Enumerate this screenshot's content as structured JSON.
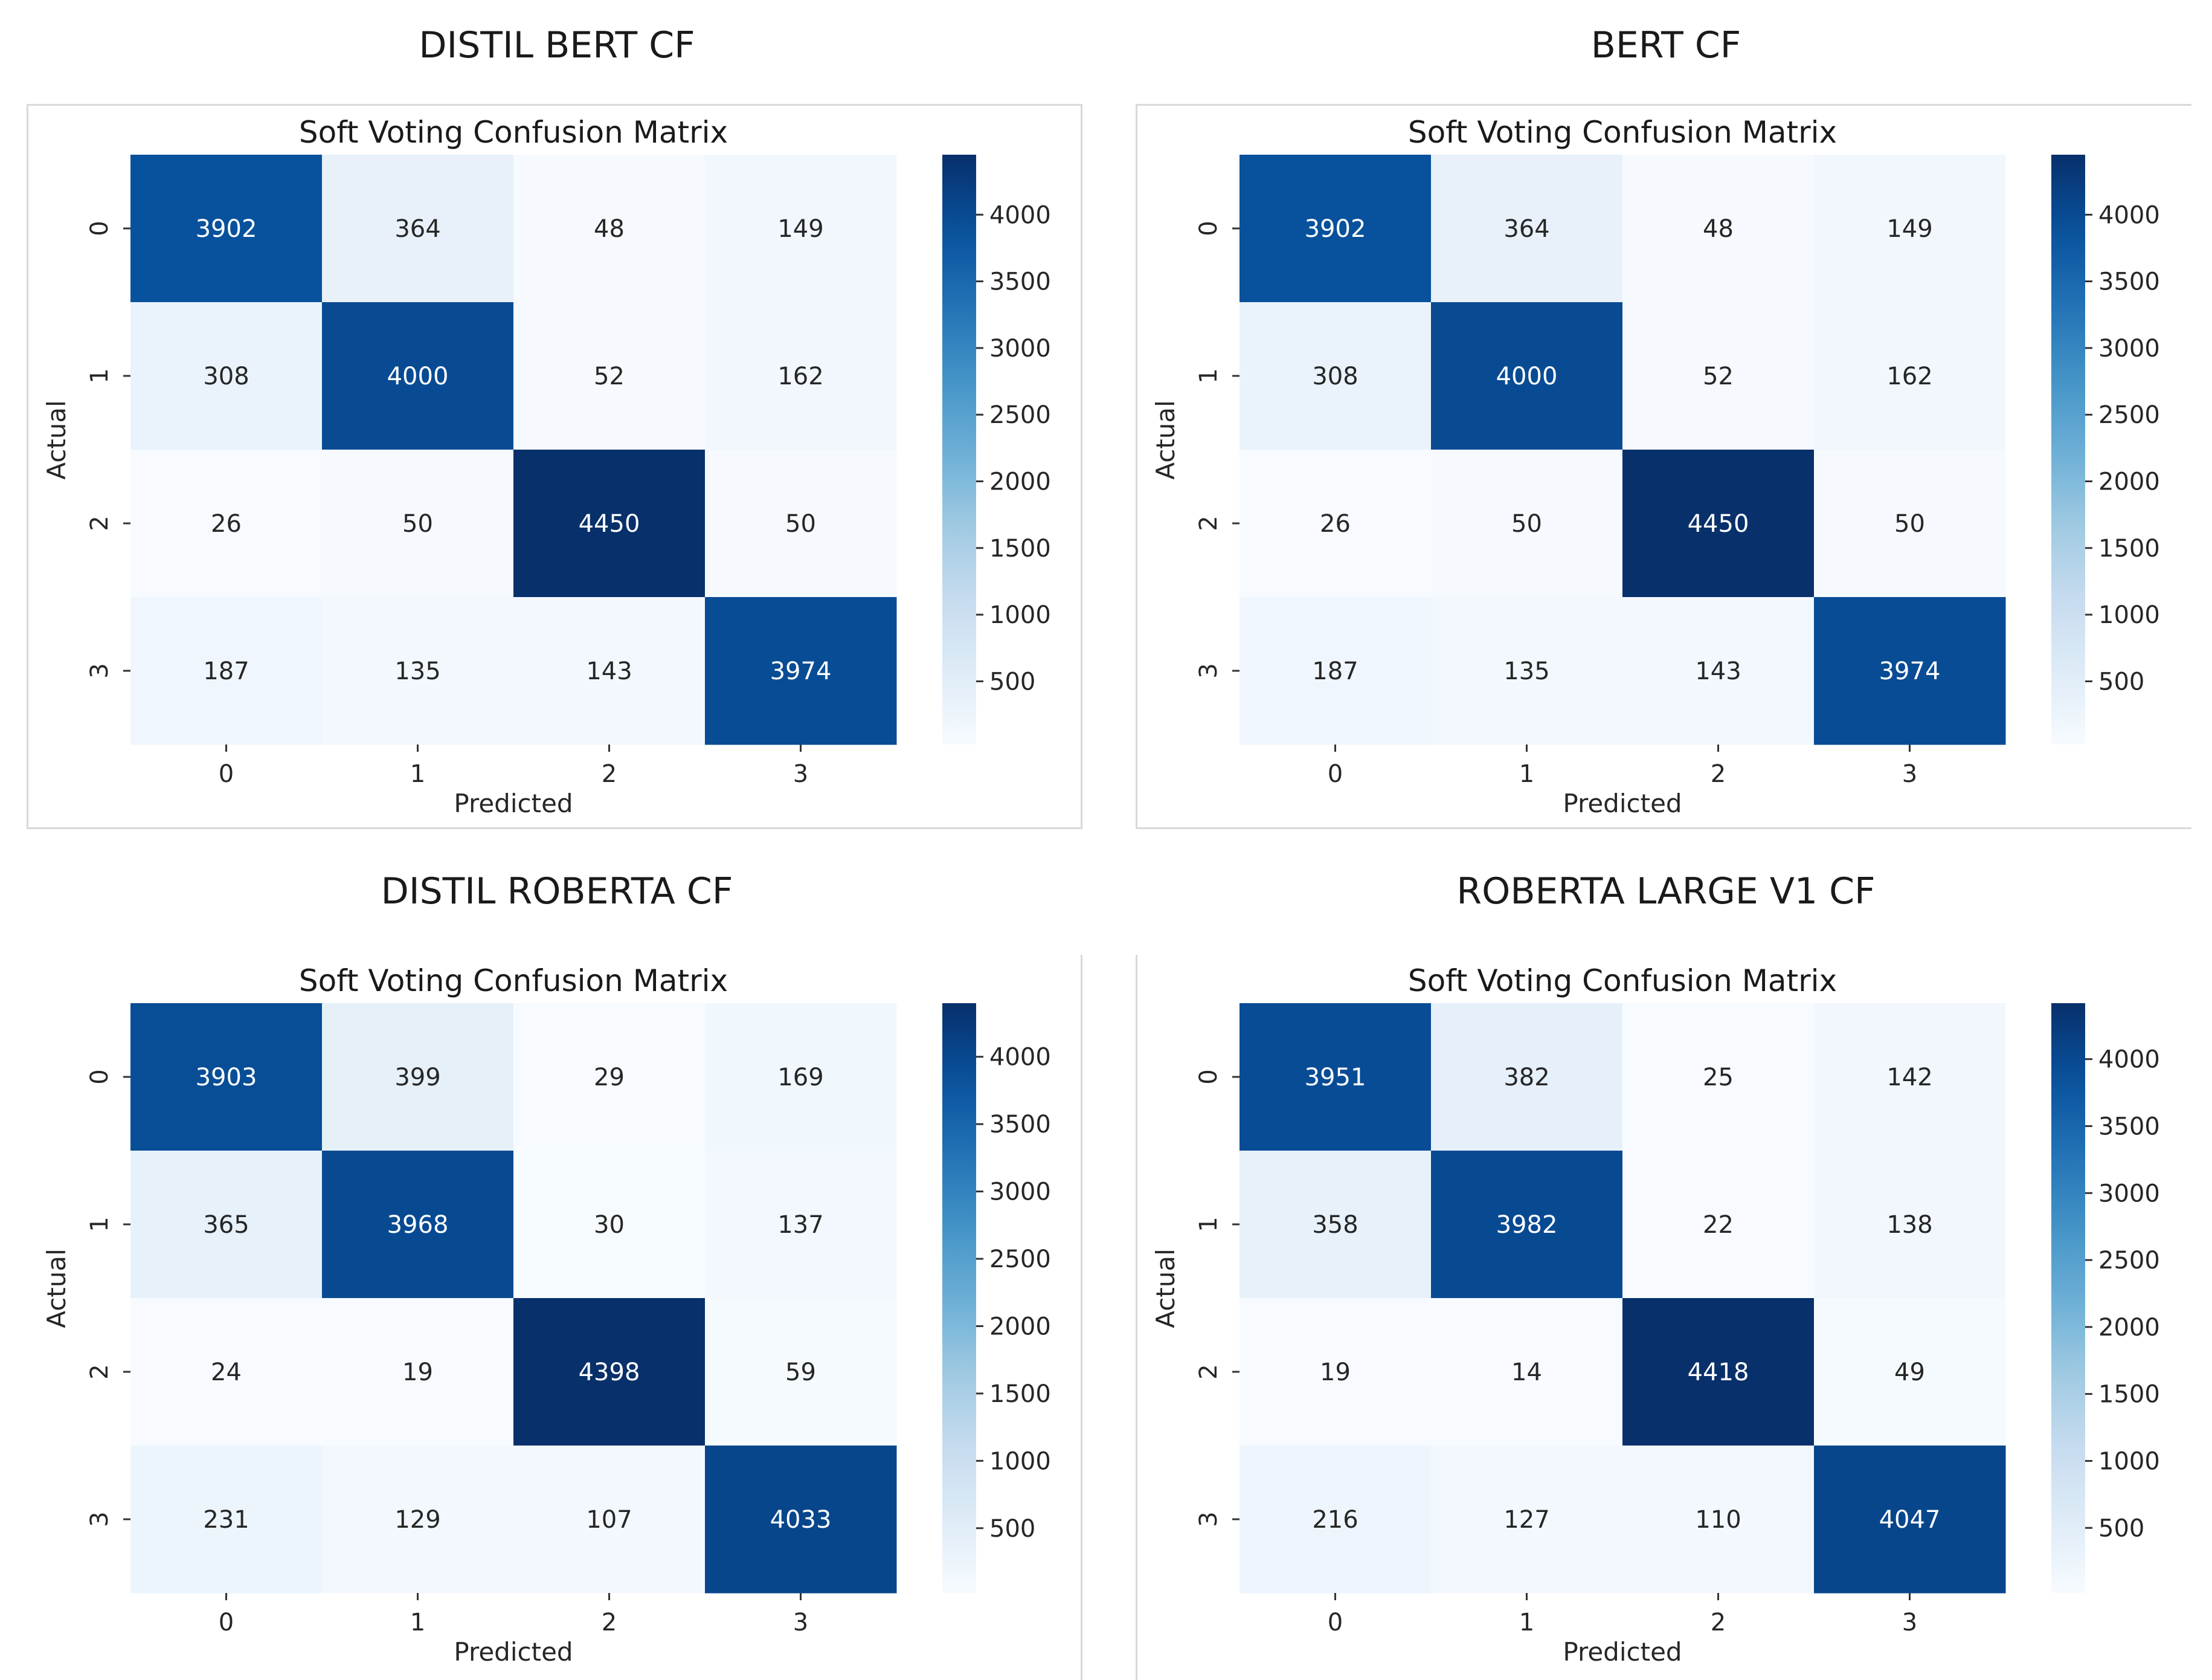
{
  "colors": {
    "cmap_low": "#f7fbff",
    "cmap_high": "#08306b",
    "text_light": "#ffffff",
    "text_dark": "#262626",
    "frame": "#d9d9d9"
  },
  "chart_data": [
    {
      "type": "heatmap",
      "panel_title": "DISTIL BERT CF",
      "title": "Soft Voting Confusion Matrix",
      "xlabel": "Predicted",
      "ylabel": "Actual",
      "x_ticks": [
        "0",
        "1",
        "2",
        "3"
      ],
      "y_ticks": [
        "0",
        "1",
        "2",
        "3"
      ],
      "matrix": [
        [
          3902,
          364,
          48,
          149
        ],
        [
          308,
          4000,
          52,
          162
        ],
        [
          26,
          50,
          4450,
          50
        ],
        [
          187,
          135,
          143,
          3974
        ]
      ],
      "colorbar": {
        "min": 26,
        "max": 4450,
        "ticks": [
          4000,
          3500,
          3000,
          2500,
          2000,
          1500,
          1000,
          500
        ]
      }
    },
    {
      "type": "heatmap",
      "panel_title": "BERT CF",
      "title": "Soft Voting Confusion Matrix",
      "xlabel": "Predicted",
      "ylabel": "Actual",
      "x_ticks": [
        "0",
        "1",
        "2",
        "3"
      ],
      "y_ticks": [
        "0",
        "1",
        "2",
        "3"
      ],
      "matrix": [
        [
          3902,
          364,
          48,
          149
        ],
        [
          308,
          4000,
          52,
          162
        ],
        [
          26,
          50,
          4450,
          50
        ],
        [
          187,
          135,
          143,
          3974
        ]
      ],
      "colorbar": {
        "min": 26,
        "max": 4450,
        "ticks": [
          4000,
          3500,
          3000,
          2500,
          2000,
          1500,
          1000,
          500
        ]
      }
    },
    {
      "type": "heatmap",
      "panel_title": "DISTIL ROBERTA CF",
      "title": "Soft Voting Confusion Matrix",
      "xlabel": "Predicted",
      "ylabel": "Actual",
      "x_ticks": [
        "0",
        "1",
        "2",
        "3"
      ],
      "y_ticks": [
        "0",
        "1",
        "2",
        "3"
      ],
      "matrix": [
        [
          3903,
          399,
          29,
          169
        ],
        [
          365,
          3968,
          30,
          137
        ],
        [
          24,
          19,
          4398,
          59
        ],
        [
          231,
          129,
          107,
          4033
        ]
      ],
      "colorbar": {
        "min": 19,
        "max": 4398,
        "ticks": [
          4000,
          3500,
          3000,
          2500,
          2000,
          1500,
          1000,
          500
        ]
      }
    },
    {
      "type": "heatmap",
      "panel_title": "ROBERTA LARGE V1 CF",
      "title": "Soft Voting Confusion Matrix",
      "xlabel": "Predicted",
      "ylabel": "Actual",
      "x_ticks": [
        "0",
        "1",
        "2",
        "3"
      ],
      "y_ticks": [
        "0",
        "1",
        "2",
        "3"
      ],
      "matrix": [
        [
          3951,
          382,
          25,
          142
        ],
        [
          358,
          3982,
          22,
          138
        ],
        [
          19,
          14,
          4418,
          49
        ],
        [
          216,
          127,
          110,
          4047
        ]
      ],
      "colorbar": {
        "min": 14,
        "max": 4418,
        "ticks": [
          4000,
          3500,
          3000,
          2500,
          2000,
          1500,
          1000,
          500
        ]
      }
    }
  ]
}
